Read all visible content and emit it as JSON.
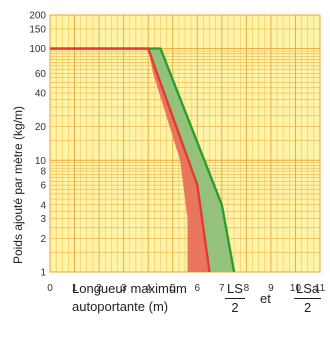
{
  "chart_data": {
    "type": "line",
    "ylabel": "Poids ajouté par mètre (kg/m)",
    "xlabel_line1": "Longueur maximum",
    "xlabel_line2": "autoportante (m)",
    "frac1": {
      "num": "LS",
      "den": "2"
    },
    "frac2": {
      "num": "LSa",
      "den": "2"
    },
    "et": "et",
    "xlim": [
      0,
      11
    ],
    "ylim": [
      1,
      200
    ],
    "yscale": "log",
    "grid": true,
    "x_ticks": [
      "0",
      "1",
      "2",
      "3",
      "4",
      "5",
      "6",
      "7",
      "8",
      "9",
      "10",
      "11"
    ],
    "y_tick_labels": [
      {
        "v": 1,
        "t": "1"
      },
      {
        "v": 2,
        "t": "2"
      },
      {
        "v": 3,
        "t": "3"
      },
      {
        "v": 4,
        "t": "4"
      },
      {
        "v": 6,
        "t": "6"
      },
      {
        "v": 8,
        "t": "8"
      },
      {
        "v": 10,
        "t": "10"
      },
      {
        "v": 20,
        "t": "20"
      },
      {
        "v": 40,
        "t": "40"
      },
      {
        "v": 60,
        "t": "60"
      },
      {
        "v": 100,
        "t": "100"
      },
      {
        "v": 150,
        "t": "150"
      },
      {
        "v": 200,
        "t": "200"
      }
    ],
    "series": [
      {
        "color": "#e53935",
        "points": [
          [
            0,
            100
          ],
          [
            4.0,
            100
          ],
          [
            6.0,
            6
          ],
          [
            6.5,
            1
          ]
        ]
      },
      {
        "color": "#2aa02a",
        "points": [
          [
            0,
            100
          ],
          [
            4.5,
            100
          ],
          [
            7.0,
            4
          ],
          [
            7.5,
            1
          ]
        ]
      }
    ],
    "bands": [
      {
        "color": "#e8705a",
        "points": [
          [
            4.2,
            60
          ],
          [
            5.3,
            10
          ],
          [
            5.6,
            3
          ],
          [
            5.6,
            1
          ],
          [
            6.5,
            1
          ],
          [
            6.0,
            6
          ],
          [
            4.0,
            100
          ]
        ]
      },
      {
        "color": "#8fbf7a",
        "points": [
          [
            4.0,
            100
          ],
          [
            4.5,
            100
          ],
          [
            7.0,
            4
          ],
          [
            7.5,
            1
          ],
          [
            6.5,
            1
          ],
          [
            6.0,
            6
          ]
        ]
      }
    ],
    "colors": {
      "background": "#fff3a8",
      "grid": "#e8a73a",
      "red": "#e53935",
      "green": "#2aa02a"
    }
  }
}
